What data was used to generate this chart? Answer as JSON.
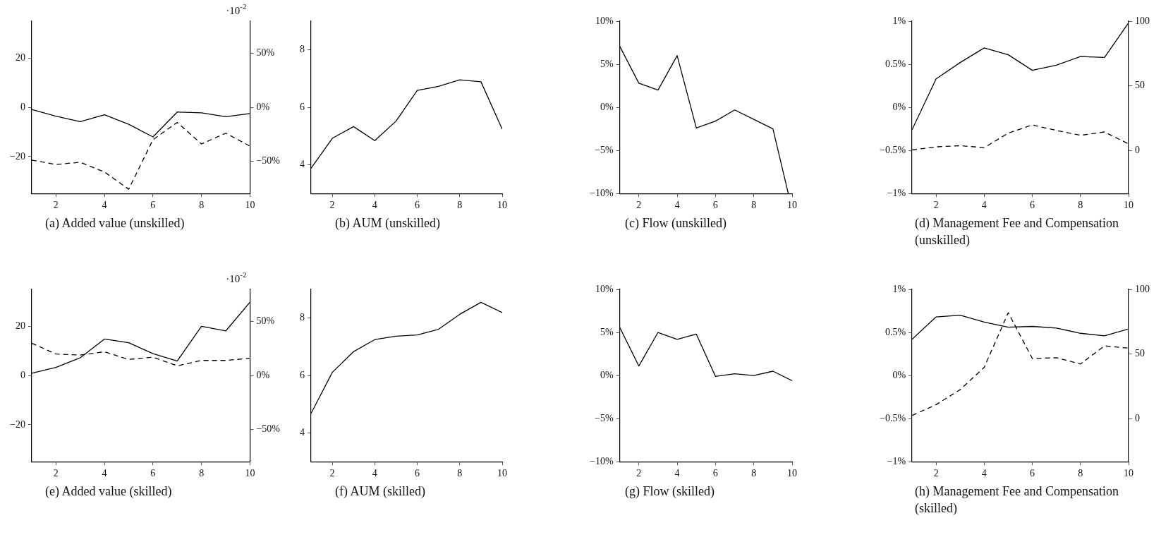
{
  "chart_data": [
    {
      "type": "line",
      "title": "(a) Added value (unskilled)",
      "x": [
        1,
        2,
        3,
        4,
        5,
        6,
        7,
        8,
        9,
        10
      ],
      "xlim": [
        1,
        10
      ],
      "xticks": [
        2,
        4,
        6,
        8,
        10
      ],
      "ylim": [
        -35,
        35
      ],
      "yticks": [
        {
          "value": -20,
          "label": "−20"
        },
        0,
        20
      ],
      "y2lim": [
        -80,
        80
      ],
      "y2ticks": [
        {
          "value": -50,
          "label": "−50%"
        },
        {
          "value": 0,
          "label": "0%"
        },
        {
          "value": 50,
          "label": "50%"
        }
      ],
      "annotations": [
        "·10$^{-2}$"
      ],
      "grid": false,
      "legend": false,
      "series": [
        {
          "color": "#000000",
          "line_style": "solid",
          "values": [
            -0.9,
            -3.6,
            -5.8,
            -3.0,
            -6.9,
            -12.0,
            -1.9,
            -2.2,
            -3.8,
            -2.5
          ]
        },
        {
          "color": "#000000",
          "line_style": "dashed",
          "axis": "y2",
          "values": [
            -49,
            -53,
            -51,
            -60,
            -76,
            -30,
            -14,
            -34,
            -24,
            -36
          ]
        }
      ]
    },
    {
      "type": "line",
      "title": "(b) AUM (unskilled)",
      "x": [
        1,
        2,
        3,
        4,
        5,
        6,
        7,
        8,
        9,
        10
      ],
      "xlim": [
        1,
        10
      ],
      "xticks": [
        2,
        4,
        6,
        8,
        10
      ],
      "ylim": [
        3,
        9
      ],
      "yticks": [
        4,
        6,
        8
      ],
      "grid": false,
      "legend": false,
      "series": [
        {
          "color": "#000000",
          "line_style": "solid",
          "values": [
            3.88,
            4.92,
            5.33,
            4.84,
            5.52,
            6.59,
            6.73,
            6.96,
            6.89,
            5.24
          ]
        }
      ]
    },
    {
      "type": "line",
      "title": "(c) Flow (unskilled)",
      "xlim": [
        1,
        10
      ],
      "xticks": [
        2,
        4,
        6,
        8,
        10
      ],
      "ylim": [
        -10,
        10
      ],
      "yticks": [
        {
          "value": -10,
          "label": "−10%"
        },
        {
          "value": -5,
          "label": "−5%"
        },
        {
          "value": 0,
          "label": "0%"
        },
        {
          "value": 5,
          "label": "5%"
        },
        {
          "value": 10,
          "label": "10%"
        }
      ],
      "grid": false,
      "legend": false,
      "series": [
        {
          "color": "#000000",
          "line_style": "solid",
          "x": [
            1,
            2,
            3,
            4,
            5,
            6,
            7,
            8,
            9,
            9.8
          ],
          "values": [
            7.1,
            2.8,
            2.0,
            6.0,
            -2.4,
            -1.6,
            -0.3,
            -1.4,
            -2.5,
            -10
          ]
        }
      ]
    },
    {
      "type": "line",
      "title": "(d) Management Fee and Compensation (unskilled)",
      "x": [
        1,
        2,
        3,
        4,
        5,
        6,
        7,
        8,
        9,
        10
      ],
      "xlim": [
        1,
        10
      ],
      "xticks": [
        2,
        4,
        6,
        8,
        10
      ],
      "ylim": [
        -1,
        1
      ],
      "yticks": [
        {
          "value": -1,
          "label": "−1%"
        },
        {
          "value": -0.5,
          "label": "−0.5%"
        },
        {
          "value": 0,
          "label": "0%"
        },
        {
          "value": 0.5,
          "label": "0.5%"
        },
        {
          "value": 1,
          "label": "1%"
        }
      ],
      "y2lim": [
        -33,
        100
      ],
      "y2ticks": [
        0,
        50,
        100
      ],
      "grid": false,
      "legend": false,
      "series": [
        {
          "color": "#000000",
          "line_style": "solid",
          "values": [
            -0.26,
            0.33,
            0.52,
            0.69,
            0.61,
            0.43,
            0.49,
            0.59,
            0.58,
            0.98
          ]
        },
        {
          "color": "#000000",
          "line_style": "dashed",
          "axis": "y2",
          "values": [
            0.6,
            3.0,
            3.9,
            2.4,
            13.6,
            19.9,
            15.7,
            11.9,
            14.5,
            5.3
          ]
        }
      ]
    },
    {
      "type": "line",
      "title": "(e) Added value (skilled)",
      "x": [
        1,
        2,
        3,
        4,
        5,
        6,
        7,
        8,
        9,
        10
      ],
      "xlim": [
        1,
        10
      ],
      "xticks": [
        2,
        4,
        6,
        8,
        10
      ],
      "ylim": [
        -35,
        35
      ],
      "yticks": [
        {
          "value": -20,
          "label": "−20"
        },
        0,
        20
      ],
      "y2lim": [
        -80,
        80
      ],
      "y2ticks": [
        {
          "value": -50,
          "label": "−50%"
        },
        {
          "value": 0,
          "label": "0%"
        },
        {
          "value": 50,
          "label": "50%"
        }
      ],
      "annotations": [
        "·10$^{-2}$"
      ],
      "grid": false,
      "legend": false,
      "series": [
        {
          "color": "#000000",
          "line_style": "solid",
          "values": [
            0.9,
            3.3,
            7.2,
            14.8,
            13.3,
            8.9,
            5.9,
            20.0,
            18.1,
            29.8
          ]
        },
        {
          "color": "#000000",
          "line_style": "dashed",
          "axis": "y2",
          "values": [
            30,
            20,
            19,
            22,
            15,
            17,
            9,
            14,
            14,
            16
          ]
        }
      ]
    },
    {
      "type": "line",
      "title": "(f) AUM (skilled)",
      "x": [
        1,
        2,
        3,
        4,
        5,
        6,
        7,
        8,
        9,
        10
      ],
      "xlim": [
        1,
        10
      ],
      "xticks": [
        2,
        4,
        6,
        8,
        10
      ],
      "ylim": [
        3,
        9
      ],
      "yticks": [
        4,
        6,
        8
      ],
      "grid": false,
      "legend": false,
      "series": [
        {
          "color": "#000000",
          "line_style": "solid",
          "values": [
            4.68,
            6.11,
            6.83,
            7.25,
            7.37,
            7.41,
            7.61,
            8.13,
            8.55,
            8.19
          ]
        }
      ]
    },
    {
      "type": "line",
      "title": "(g) Flow (skilled)",
      "x": [
        1,
        2,
        3,
        4,
        5,
        6,
        7,
        8,
        9,
        10
      ],
      "xlim": [
        1,
        10
      ],
      "xticks": [
        2,
        4,
        6,
        8,
        10
      ],
      "ylim": [
        -10,
        10
      ],
      "yticks": [
        {
          "value": -10,
          "label": "−10%"
        },
        {
          "value": -5,
          "label": "−5%"
        },
        {
          "value": 0,
          "label": "0%"
        },
        {
          "value": 5,
          "label": "5%"
        },
        {
          "value": 10,
          "label": "10%"
        }
      ],
      "grid": false,
      "legend": false,
      "series": [
        {
          "color": "#000000",
          "line_style": "solid",
          "values": [
            5.6,
            1.1,
            5.0,
            4.2,
            4.8,
            -0.1,
            0.2,
            0.0,
            0.5,
            -0.6
          ]
        }
      ]
    },
    {
      "type": "line",
      "title": "(h) Management Fee and Compensation (skilled)",
      "x": [
        1,
        2,
        3,
        4,
        5,
        6,
        7,
        8,
        9,
        10
      ],
      "xlim": [
        1,
        10
      ],
      "xticks": [
        2,
        4,
        6,
        8,
        10
      ],
      "ylim": [
        -1,
        1
      ],
      "yticks": [
        {
          "value": -1,
          "label": "−1%"
        },
        {
          "value": -0.5,
          "label": "−0.5%"
        },
        {
          "value": 0,
          "label": "0%"
        },
        {
          "value": 0.5,
          "label": "0.5%"
        },
        {
          "value": 1,
          "label": "1%"
        }
      ],
      "y2lim": [
        -33,
        100
      ],
      "y2ticks": [
        0,
        50,
        100
      ],
      "grid": false,
      "legend": false,
      "series": [
        {
          "color": "#000000",
          "line_style": "solid",
          "values": [
            0.42,
            0.68,
            0.7,
            0.62,
            0.56,
            0.57,
            0.55,
            0.49,
            0.46,
            0.54
          ]
        },
        {
          "color": "#000000",
          "line_style": "dashed",
          "axis": "y2",
          "values": [
            2.7,
            11,
            22.6,
            39.8,
            82,
            46.6,
            47.2,
            42.4,
            56.4,
            54.6
          ]
        }
      ]
    }
  ]
}
